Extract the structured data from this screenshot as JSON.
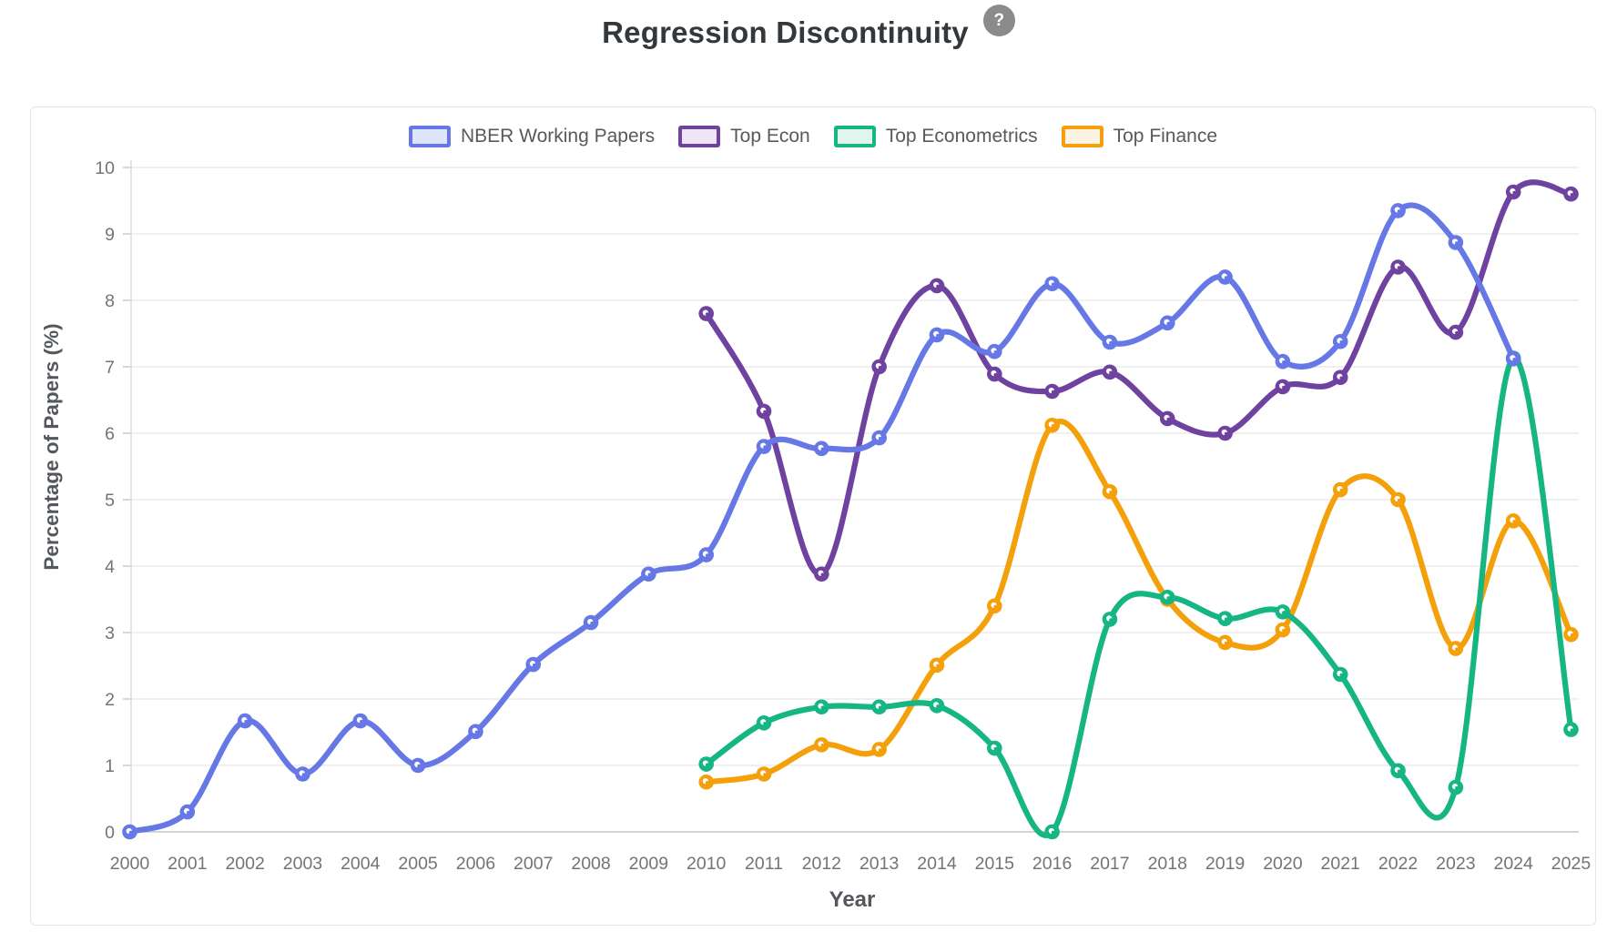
{
  "header": {
    "title": "Regression Discontinuity",
    "help_label": "?"
  },
  "colors": {
    "grid": "#ececec",
    "axis_line": "#c6c6c6",
    "y_axis_line": "#dcdcdc",
    "tick_text": "#707578",
    "axis_title_text": "#54585c",
    "title_text": "#33383c",
    "legend_text": "#58595b",
    "help_bg": "#8b8b8b"
  },
  "chart_data": {
    "type": "line",
    "title": "Regression Discontinuity",
    "xlabel": "Year",
    "ylabel": "Percentage of Papers (%)",
    "x": [
      2000,
      2001,
      2002,
      2003,
      2004,
      2005,
      2006,
      2007,
      2008,
      2009,
      2010,
      2011,
      2012,
      2013,
      2014,
      2015,
      2016,
      2017,
      2018,
      2019,
      2020,
      2021,
      2022,
      2023,
      2024,
      2025
    ],
    "ylim": [
      0,
      10
    ],
    "yticks": [
      0,
      1,
      2,
      3,
      4,
      5,
      6,
      7,
      8,
      9,
      10
    ],
    "grid": true,
    "legend_position": "top",
    "series": [
      {
        "name": "NBER Working Papers",
        "color": "#6677e6",
        "fill": "#dee5fb",
        "values": [
          0.0,
          0.3,
          1.67,
          0.87,
          1.67,
          1.0,
          1.51,
          2.52,
          3.15,
          3.88,
          4.17,
          5.8,
          5.77,
          5.93,
          7.48,
          7.23,
          8.25,
          7.37,
          7.66,
          8.35,
          7.08,
          7.38,
          9.35,
          8.87,
          7.12,
          null
        ]
      },
      {
        "name": "Top Econ",
        "color": "#6f42a0",
        "fill": "#eee6f7",
        "values": [
          null,
          null,
          null,
          null,
          null,
          null,
          null,
          null,
          null,
          null,
          7.8,
          6.33,
          3.88,
          7.0,
          8.22,
          6.89,
          6.63,
          6.92,
          6.22,
          6.0,
          6.7,
          6.84,
          8.5,
          7.52,
          9.63,
          9.6
        ]
      },
      {
        "name": "Top Econometrics",
        "color": "#16b584",
        "fill": "#e0f5ec",
        "values": [
          null,
          null,
          null,
          null,
          null,
          null,
          null,
          null,
          null,
          null,
          1.02,
          1.64,
          1.88,
          1.88,
          1.9,
          1.26,
          0.0,
          3.2,
          3.53,
          3.21,
          3.31,
          2.37,
          0.92,
          0.67,
          7.13,
          1.54
        ]
      },
      {
        "name": "Top Finance",
        "color": "#f4a00a",
        "fill": "#fdf3e2",
        "values": [
          null,
          null,
          null,
          null,
          null,
          null,
          null,
          null,
          null,
          null,
          0.75,
          0.87,
          1.31,
          1.24,
          2.51,
          3.4,
          6.12,
          5.12,
          3.5,
          2.85,
          3.04,
          5.15,
          5.0,
          2.76,
          4.68,
          2.97
        ]
      }
    ]
  }
}
